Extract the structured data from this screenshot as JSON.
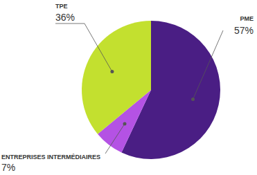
{
  "chart_data": {
    "type": "pie",
    "categories": [
      "PME",
      "ENTREPRISES INTERMÉDIAIRES",
      "TPE"
    ],
    "values": [
      57,
      7,
      36
    ],
    "value_labels": [
      "57%",
      "7%",
      "36%"
    ],
    "colors": [
      "#4a1e84",
      "#b452e4",
      "#c3e02f"
    ],
    "data_labels": true
  }
}
